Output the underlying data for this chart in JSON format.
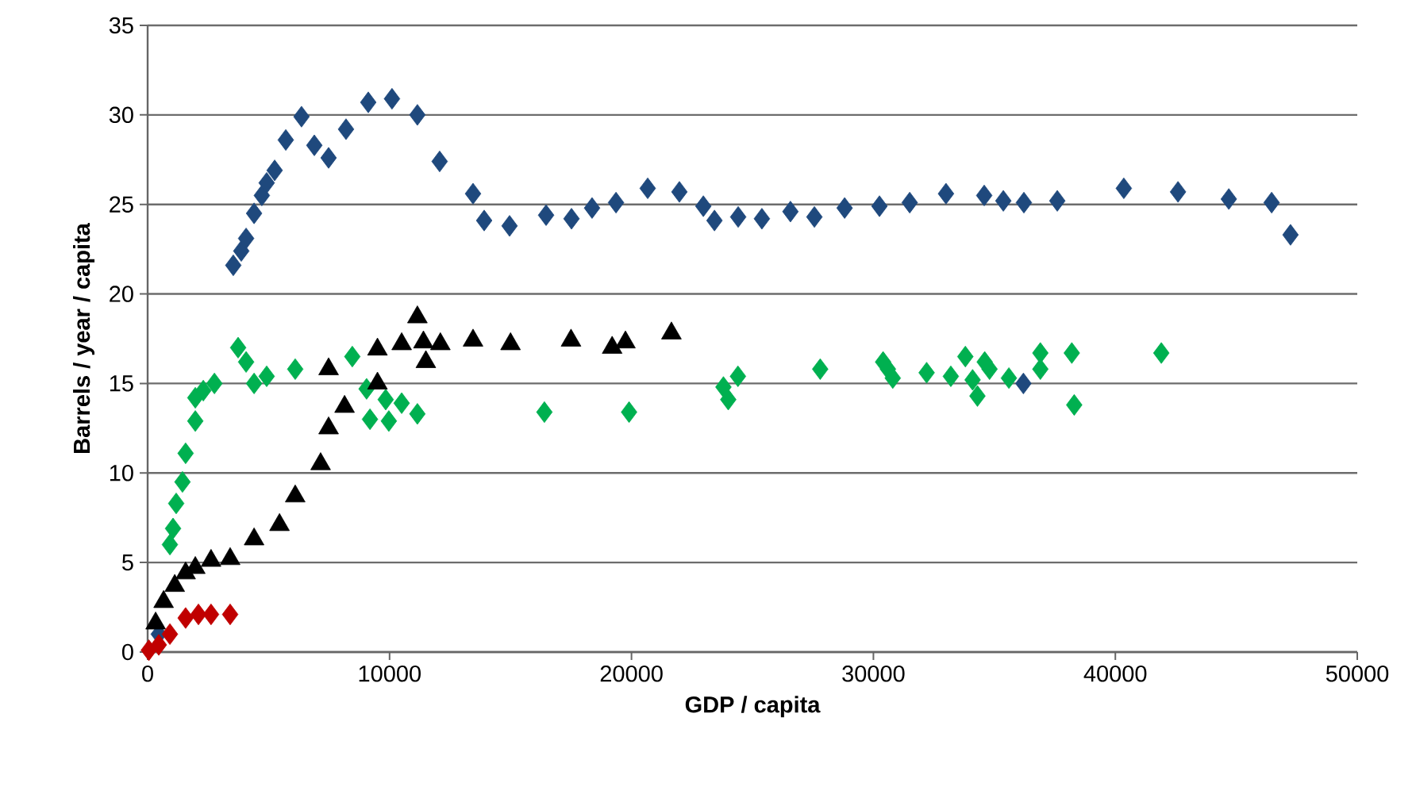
{
  "chart_data": {
    "type": "scatter",
    "xlabel": "GDP / capita",
    "ylabel": "Barrels / year / capita",
    "xlim": [
      0,
      50000
    ],
    "ylim": [
      0,
      35
    ],
    "xticks": [
      0,
      10000,
      20000,
      30000,
      40000,
      50000
    ],
    "yticks": [
      0,
      5,
      10,
      15,
      20,
      25,
      30,
      35
    ],
    "grid": "y",
    "legend": false,
    "series": [
      {
        "color": "#1f497d",
        "marker": "diamond",
        "x": [
          460,
          1000,
          3540,
          3870,
          4070,
          4400,
          4720,
          4920,
          5250,
          5710,
          6360,
          6890,
          7480,
          8200,
          8500,
          9120,
          10100,
          11150,
          12070,
          13450,
          13910,
          14960,
          16470,
          17520,
          18370,
          19360,
          20670,
          21980,
          22970,
          23430,
          24410,
          25390,
          26570,
          27560,
          28810,
          30250,
          31500,
          33000,
          34580,
          35370,
          36200,
          36220,
          37600,
          40350,
          42590,
          44690,
          46460,
          47240
        ],
        "values": [
          1.0,
          null,
          21.6,
          22.4,
          23.1,
          24.5,
          25.5,
          26.2,
          26.9,
          28.6,
          29.9,
          28.3,
          27.6,
          29.2,
          null,
          30.7,
          30.9,
          30.0,
          27.4,
          25.6,
          24.1,
          23.8,
          24.4,
          24.2,
          24.8,
          25.1,
          25.9,
          25.7,
          24.9,
          24.1,
          24.3,
          24.2,
          24.6,
          24.3,
          24.8,
          24.9,
          25.1,
          25.6,
          25.5,
          25.2,
          15.0,
          25.1,
          25.2,
          25.9,
          25.7,
          25.3,
          25.1,
          23.3
        ]
      },
      {
        "color": "#00b050",
        "marker": "diamond",
        "x": [
          920,
          1050,
          1180,
          1440,
          1570,
          1970,
          1970,
          2300,
          2760,
          3740,
          4070,
          4400,
          4920,
          6100,
          8460,
          9050,
          9190,
          9840,
          9970,
          10500,
          11150,
          16400,
          19900,
          23800,
          24000,
          24400,
          27800,
          30400,
          30600,
          30800,
          32200,
          33200,
          33800,
          34100,
          34300,
          34600,
          34800,
          35600,
          36900,
          36900,
          38200,
          38300,
          41900
        ],
        "values": [
          6.0,
          6.9,
          8.3,
          9.5,
          11.1,
          12.9,
          14.2,
          14.6,
          15.0,
          17.0,
          16.2,
          15.0,
          15.4,
          15.8,
          16.5,
          14.7,
          13.0,
          14.1,
          12.9,
          13.9,
          13.3,
          13.4,
          13.4,
          14.8,
          14.1,
          15.4,
          15.8,
          16.2,
          15.8,
          15.3,
          15.6,
          15.4,
          16.5,
          15.2,
          14.3,
          16.2,
          15.8,
          15.3,
          15.8,
          16.7,
          16.7,
          13.8,
          16.7
        ]
      },
      {
        "color": "#000000",
        "marker": "triangle",
        "x": [
          330,
          660,
          1120,
          1570,
          1970,
          2620,
          3410,
          4400,
          5450,
          6100,
          7150,
          7480,
          7480,
          8140,
          9500,
          9500,
          10500,
          11150,
          11400,
          11500,
          12100,
          13450,
          15000,
          17500,
          19200,
          19750,
          21650
        ],
        "values": [
          1.6,
          2.8,
          3.7,
          4.4,
          4.7,
          5.1,
          5.2,
          6.3,
          7.1,
          8.7,
          10.5,
          12.5,
          15.8,
          13.7,
          15.0,
          16.9,
          17.2,
          18.7,
          17.3,
          16.2,
          17.2,
          17.4,
          17.2,
          17.4,
          17.0,
          17.3,
          17.8
        ]
      },
      {
        "color": "#c00000",
        "marker": "diamond",
        "x": [
          50,
          460,
          920,
          1570,
          2100,
          2620,
          3410
        ],
        "values": [
          0.1,
          0.4,
          1.0,
          1.9,
          2.1,
          2.1,
          2.1
        ]
      }
    ]
  }
}
